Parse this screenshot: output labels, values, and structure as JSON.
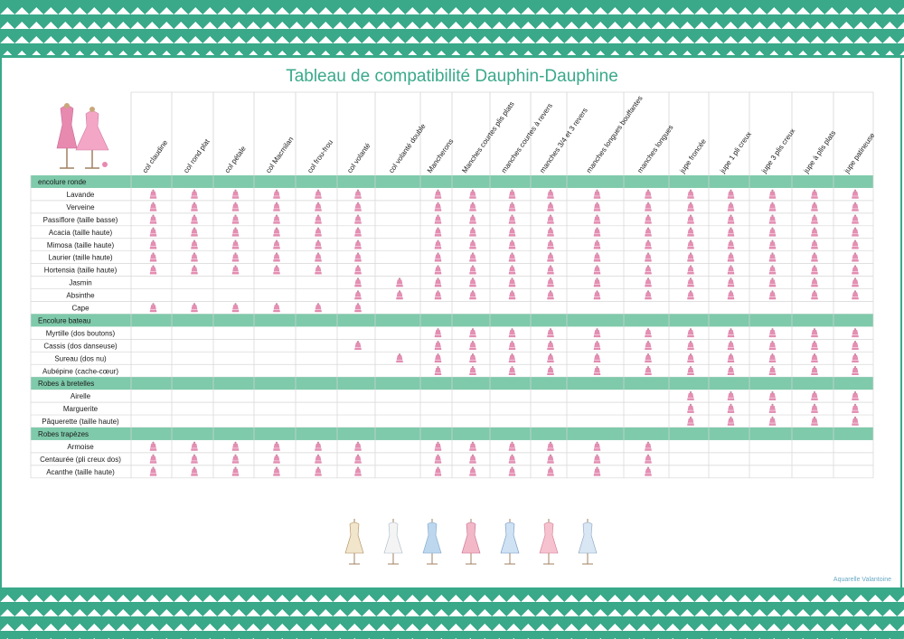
{
  "title": "Tableau de compatibilité Dauphin-Dauphine",
  "credit": "Aquarelle Valantoine",
  "colors": {
    "accent": "#39a98a",
    "section_fill": "#7ecaab",
    "mark": "#e58fb3"
  },
  "columns": [
    "col claudine",
    "col rond plat",
    "col pétale",
    "col Macmilan",
    "col frou-frou",
    "col volanté",
    "col volanté double",
    "Mancherons",
    "Manches courtes plis plats",
    "manches courtes à revers",
    "manches 3/4 et 3 revers",
    "manches longues bouffantes",
    "manches longues",
    "jupe froncée",
    "jupe 1 pli creux",
    "jupe 3 plis creux",
    "jupe à plis plats",
    "jupe patineuse"
  ],
  "mark_icon": "dress-icon",
  "sections": [
    {
      "title": "encolure ronde",
      "rows": [
        {
          "label": "Lavande",
          "marks": [
            1,
            1,
            1,
            1,
            1,
            1,
            0,
            1,
            1,
            1,
            1,
            1,
            1,
            1,
            1,
            1,
            1,
            1
          ]
        },
        {
          "label": "Verveine",
          "marks": [
            1,
            1,
            1,
            1,
            1,
            1,
            0,
            1,
            1,
            1,
            1,
            1,
            1,
            1,
            1,
            1,
            1,
            1
          ]
        },
        {
          "label": "Passiflore (taille basse)",
          "marks": [
            1,
            1,
            1,
            1,
            1,
            1,
            0,
            1,
            1,
            1,
            1,
            1,
            1,
            1,
            1,
            1,
            1,
            1
          ]
        },
        {
          "label": "Acacia (taille haute)",
          "marks": [
            1,
            1,
            1,
            1,
            1,
            1,
            0,
            1,
            1,
            1,
            1,
            1,
            1,
            1,
            1,
            1,
            1,
            1
          ]
        },
        {
          "label": "Mimosa (taille haute)",
          "marks": [
            1,
            1,
            1,
            1,
            1,
            1,
            0,
            1,
            1,
            1,
            1,
            1,
            1,
            1,
            1,
            1,
            1,
            1
          ]
        },
        {
          "label": "Laurier (taille haute)",
          "marks": [
            1,
            1,
            1,
            1,
            1,
            1,
            0,
            1,
            1,
            1,
            1,
            1,
            1,
            1,
            1,
            1,
            1,
            1
          ]
        },
        {
          "label": "Hortensia (taille haute)",
          "marks": [
            1,
            1,
            1,
            1,
            1,
            1,
            0,
            1,
            1,
            1,
            1,
            1,
            1,
            1,
            1,
            1,
            1,
            1
          ]
        },
        {
          "label": "Jasmin",
          "marks": [
            0,
            0,
            0,
            0,
            0,
            1,
            1,
            1,
            1,
            1,
            1,
            1,
            1,
            1,
            1,
            1,
            1,
            1
          ]
        },
        {
          "label": "Absinthe",
          "marks": [
            0,
            0,
            0,
            0,
            0,
            1,
            1,
            1,
            1,
            1,
            1,
            1,
            1,
            1,
            1,
            1,
            1,
            1
          ]
        },
        {
          "label": "Cape",
          "marks": [
            1,
            1,
            1,
            1,
            1,
            1,
            0,
            0,
            0,
            0,
            0,
            0,
            0,
            0,
            0,
            0,
            0,
            0
          ]
        }
      ]
    },
    {
      "title": "Encolure bateau",
      "rows": [
        {
          "label": "Myrtille (dos boutons)",
          "marks": [
            0,
            0,
            0,
            0,
            0,
            0,
            0,
            1,
            1,
            1,
            1,
            1,
            1,
            1,
            1,
            1,
            1,
            1
          ]
        },
        {
          "label": "Cassis (dos danseuse)",
          "marks": [
            0,
            0,
            0,
            0,
            0,
            1,
            0,
            1,
            1,
            1,
            1,
            1,
            1,
            1,
            1,
            1,
            1,
            1
          ]
        },
        {
          "label": "Sureau (dos nu)",
          "marks": [
            0,
            0,
            0,
            0,
            0,
            0,
            1,
            1,
            1,
            1,
            1,
            1,
            1,
            1,
            1,
            1,
            1,
            1
          ]
        },
        {
          "label": "Aubépine (cache-cœur)",
          "marks": [
            0,
            0,
            0,
            0,
            0,
            0,
            0,
            1,
            1,
            1,
            1,
            1,
            1,
            1,
            1,
            1,
            1,
            1
          ]
        }
      ]
    },
    {
      "title": "Robes à bretelles",
      "rows": [
        {
          "label": "Airelle",
          "marks": [
            0,
            0,
            0,
            0,
            0,
            0,
            0,
            0,
            0,
            0,
            0,
            0,
            0,
            1,
            1,
            1,
            1,
            1
          ]
        },
        {
          "label": "Marguerite",
          "marks": [
            0,
            0,
            0,
            0,
            0,
            0,
            0,
            0,
            0,
            0,
            0,
            0,
            0,
            1,
            1,
            1,
            1,
            1
          ]
        },
        {
          "label": "Pâquerette (taille haute)",
          "marks": [
            0,
            0,
            0,
            0,
            0,
            0,
            0,
            0,
            0,
            0,
            0,
            0,
            0,
            1,
            1,
            1,
            1,
            1
          ]
        }
      ]
    },
    {
      "title": "Robes trapèzes",
      "rows": [
        {
          "label": "Armoise",
          "marks": [
            1,
            1,
            1,
            1,
            1,
            1,
            0,
            1,
            1,
            1,
            1,
            1,
            1,
            0,
            0,
            0,
            0,
            0
          ]
        },
        {
          "label": "Centaurée (pli creux dos)",
          "marks": [
            1,
            1,
            1,
            1,
            1,
            1,
            0,
            1,
            1,
            1,
            1,
            1,
            1,
            0,
            0,
            0,
            0,
            0
          ]
        },
        {
          "label": "Acanthe (taille haute)",
          "marks": [
            1,
            1,
            1,
            1,
            1,
            1,
            0,
            1,
            1,
            1,
            1,
            1,
            1,
            0,
            0,
            0,
            0,
            0
          ]
        }
      ]
    }
  ],
  "footer_icons": [
    "mannequin-cream-icon",
    "mannequin-white-icon",
    "mannequin-blue-icon",
    "mannequin-pink-icon",
    "mannequin-pair-blue-icon",
    "mannequin-rose-icon",
    "mannequin-floral-icon"
  ]
}
